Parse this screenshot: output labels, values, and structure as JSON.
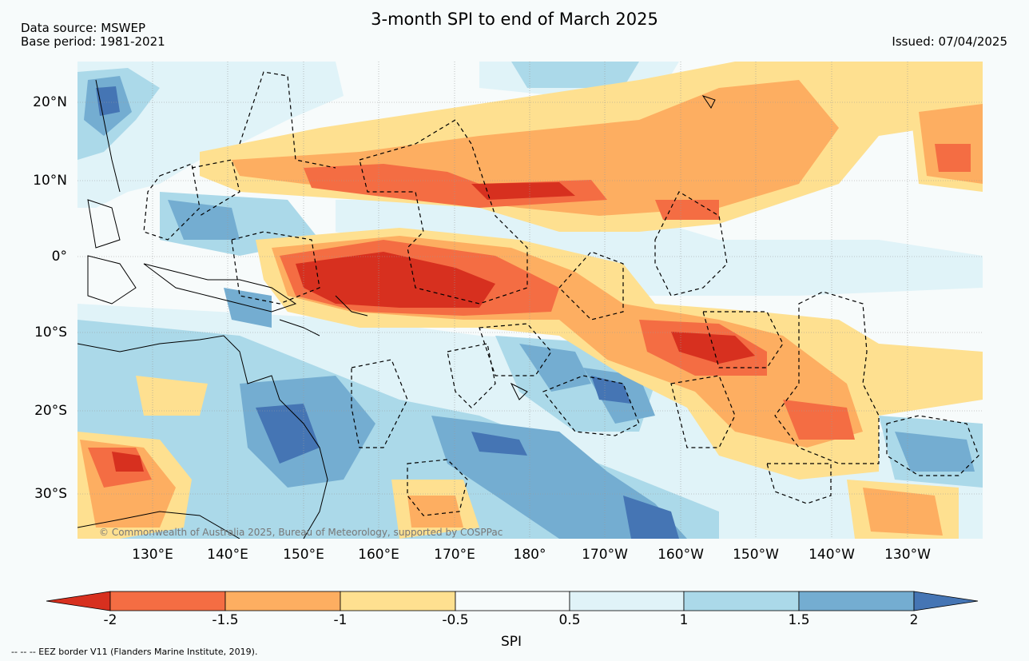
{
  "title": "3-month SPI to end of March 2025",
  "data_source": "Data source: MSWEP",
  "base_period": "Base period: 1981-2021",
  "issued": "Issued: 07/04/2025",
  "copyright": "© Commonwealth of Australia 2025, Bureau of Meteorology, supported by COSPPac",
  "footnote": "--  --  -- EEZ border V11 (Flanders Marine Institute, 2019).",
  "map": {
    "lat_labels": [
      "20°N",
      "10°N",
      "0°",
      "10°S",
      "20°S",
      "30°S"
    ],
    "lon_labels": [
      "130°E",
      "140°E",
      "150°E",
      "160°E",
      "170°E",
      "180°",
      "170°W",
      "160°W",
      "150°W",
      "140°W",
      "130°W"
    ],
    "gridlines": true
  },
  "colorbar": {
    "label": "SPI",
    "ticks": [
      "-2",
      "-1.5",
      "-1",
      "-0.5",
      "0.5",
      "1",
      "1.5",
      "2"
    ],
    "colors": [
      "#d7301f",
      "#f46d43",
      "#fdae61",
      "#fee090",
      "#f7fbfb",
      "#e0f3f8",
      "#abd9e9",
      "#74add1",
      "#4575b4"
    ],
    "extend": "both"
  }
}
